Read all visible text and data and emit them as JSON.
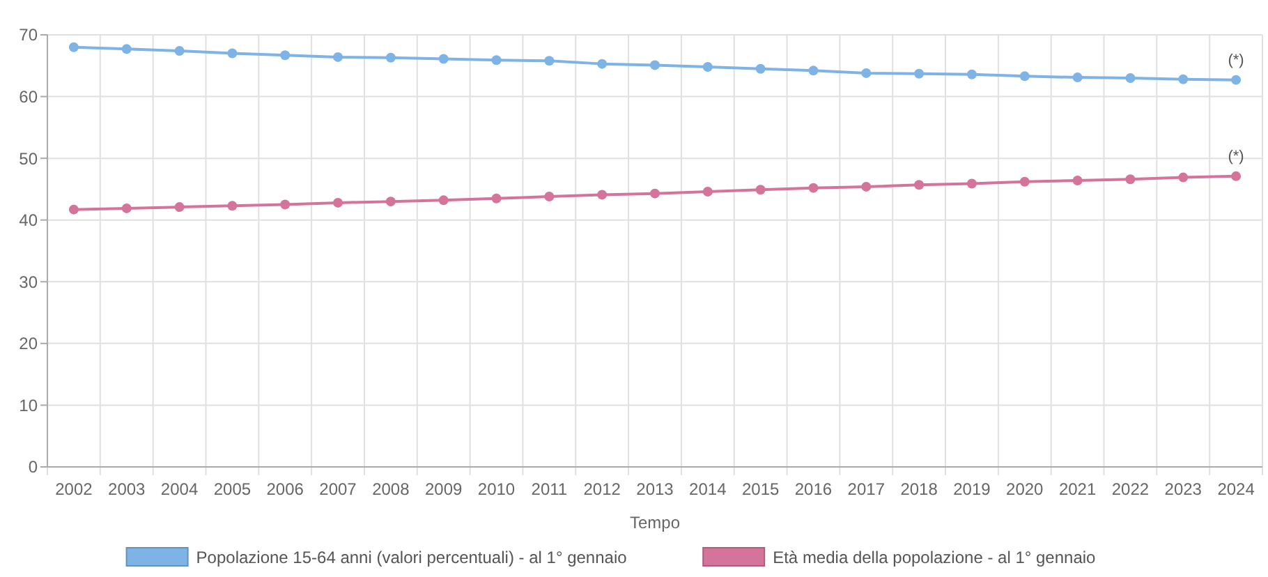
{
  "chart_data": {
    "type": "line",
    "xlabel": "Tempo",
    "categories": [
      "2002",
      "2003",
      "2004",
      "2005",
      "2006",
      "2007",
      "2008",
      "2009",
      "2010",
      "2011",
      "2012",
      "2013",
      "2014",
      "2015",
      "2016",
      "2017",
      "2018",
      "2019",
      "2020",
      "2021",
      "2022",
      "2023",
      "2024"
    ],
    "series": [
      {
        "name": "Popolazione 15-64 anni (valori percentuali) - al 1° gennaio",
        "color": "#7eb3e6",
        "values": [
          68.0,
          67.7,
          67.4,
          67.0,
          66.7,
          66.4,
          66.3,
          66.1,
          65.9,
          65.8,
          65.3,
          65.1,
          64.8,
          64.5,
          64.2,
          63.8,
          63.7,
          63.6,
          63.3,
          63.1,
          63.0,
          62.8,
          62.7
        ]
      },
      {
        "name": "Età media della popolazione - al 1° gennaio",
        "color": "#d5749a",
        "values": [
          41.7,
          41.9,
          42.1,
          42.3,
          42.5,
          42.8,
          43.0,
          43.2,
          43.5,
          43.8,
          44.1,
          44.3,
          44.6,
          44.9,
          45.2,
          45.4,
          45.7,
          45.9,
          46.2,
          46.4,
          46.6,
          46.9,
          47.1
        ]
      }
    ],
    "annotations": [
      {
        "text": "(*)",
        "x": "2024",
        "y": 62.7
      },
      {
        "text": "(*)",
        "x": "2024",
        "y": 47.1
      }
    ],
    "ylim": [
      0,
      70
    ],
    "yticks": [
      0,
      10,
      20,
      30,
      40,
      50,
      60,
      70
    ],
    "grid": true,
    "legend": "bottom",
    "marker": "circle",
    "line_style": "solid"
  }
}
